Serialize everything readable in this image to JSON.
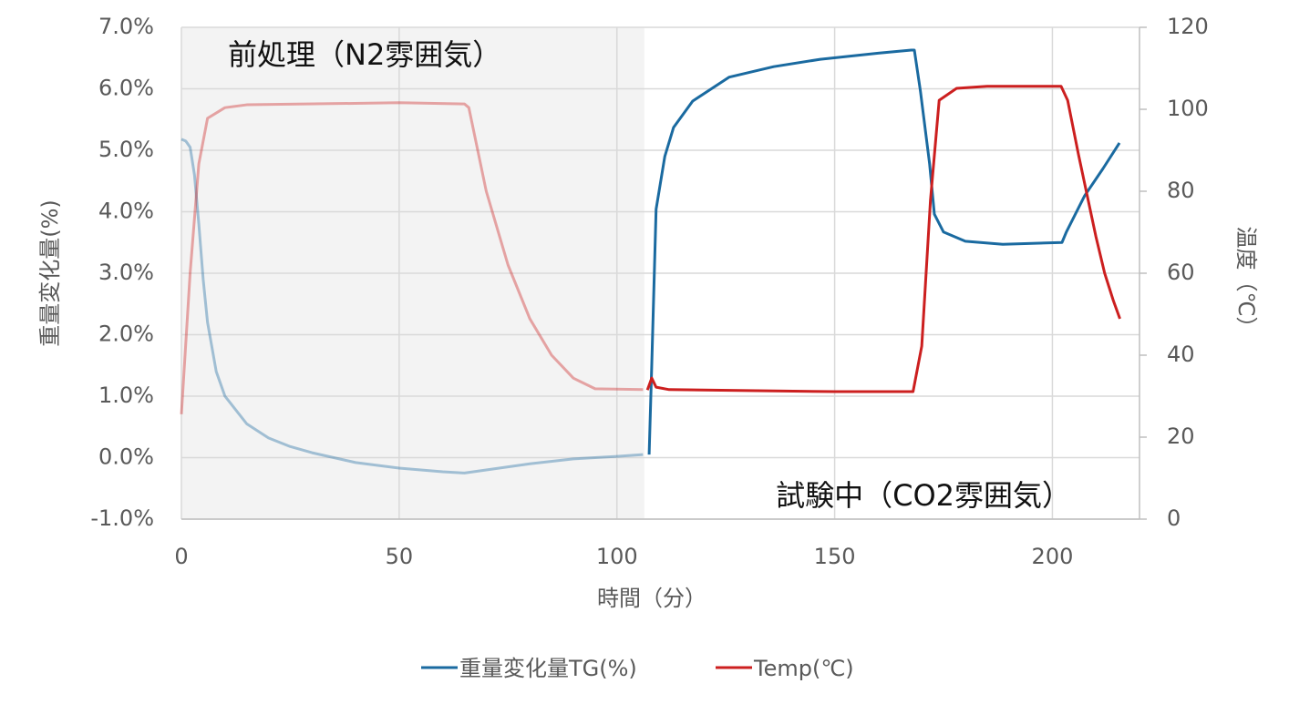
{
  "chart_data": {
    "type": "line",
    "x_label": "時間（分）",
    "y_label": "重量変化量(%)",
    "y2_label": "温度（℃）",
    "xlim": [
      0,
      220
    ],
    "xticks": [
      0,
      50,
      100,
      150,
      200
    ],
    "ylim": [
      -1,
      7
    ],
    "yticks": [
      {
        "value": -1,
        "label": "-1.0%"
      },
      {
        "value": 0,
        "label": "0.0%"
      },
      {
        "value": 1,
        "label": "1.0%"
      },
      {
        "value": 2,
        "label": "2.0%"
      },
      {
        "value": 3,
        "label": "3.0%"
      },
      {
        "value": 4,
        "label": "4.0%"
      },
      {
        "value": 5,
        "label": "5.0%"
      },
      {
        "value": 6,
        "label": "6.0%"
      },
      {
        "value": 7,
        "label": "7.0%"
      }
    ],
    "y2lim": [
      0,
      120
    ],
    "y2ticks": [
      0,
      20,
      40,
      60,
      80,
      100,
      120
    ],
    "grid": true,
    "shaded_xrange": [
      0,
      106.3
    ],
    "annotations": [
      {
        "text": "前処理（N2雰囲気）"
      },
      {
        "text": "試験中（CO2雰囲気）"
      }
    ],
    "legend": "bottom",
    "series": [
      {
        "name": "重量変化量TG(%)",
        "color": "#1a6aa0",
        "x": [
          0,
          1,
          2,
          3,
          4,
          5,
          6,
          8,
          10,
          15,
          20,
          25,
          30,
          40,
          50,
          60,
          65,
          70,
          80,
          90,
          100,
          106,
          107.4,
          108,
          109,
          111,
          113,
          117.4,
          125.8,
          136,
          146.7,
          160,
          167.6,
          168.3,
          169.7,
          171.8,
          172.9,
          175,
          180,
          188.6,
          202.2,
          203.2,
          207.4,
          211.6,
          215.4
        ],
        "values": [
          5.18,
          5.15,
          5.05,
          4.6,
          3.8,
          2.9,
          2.2,
          1.4,
          1.0,
          0.55,
          0.32,
          0.18,
          0.08,
          -0.08,
          -0.17,
          -0.23,
          -0.25,
          -0.2,
          -0.1,
          -0.02,
          0.02,
          0.05,
          0.05,
          1.5,
          4.04,
          4.9,
          5.37,
          5.8,
          6.19,
          6.36,
          6.48,
          6.58,
          6.63,
          6.63,
          5.96,
          4.78,
          3.96,
          3.67,
          3.52,
          3.47,
          3.5,
          3.67,
          4.26,
          4.7,
          5.12
        ]
      },
      {
        "name": "Temp(℃)",
        "color": "#cc1f1f",
        "axis": "y2",
        "x": [
          0,
          2,
          4,
          6,
          10,
          15,
          50,
          65,
          66,
          70,
          75,
          80,
          85,
          90,
          95,
          106,
          107,
          108,
          109,
          112,
          150,
          168,
          170,
          172,
          174,
          178,
          185,
          202,
          203.5,
          206,
          208,
          210,
          212,
          214,
          215.5
        ],
        "values": [
          25.6,
          60,
          86.7,
          97.8,
          100.4,
          101.1,
          101.6,
          101.3,
          100.4,
          80,
          62,
          48.9,
          40,
          34.4,
          31.8,
          31.6,
          31.5,
          34.4,
          32.2,
          31.6,
          31.1,
          31.1,
          42.2,
          77.8,
          102.2,
          105.1,
          105.6,
          105.6,
          102.2,
          88.9,
          78.9,
          68.9,
          60,
          53.3,
          48.9
        ]
      }
    ]
  }
}
